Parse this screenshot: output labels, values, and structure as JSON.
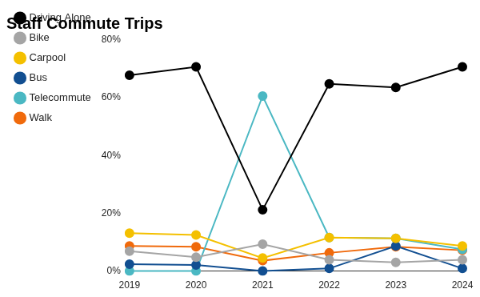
{
  "chart_data": {
    "type": "line",
    "title": "Staff Commute Trips",
    "categories": [
      "2019",
      "2020",
      "2021",
      "2022",
      "2023",
      "2024"
    ],
    "series": [
      {
        "name": "Driving Alone",
        "color": "#000000",
        "values": [
          67.8,
          70.7,
          21.2,
          64.8,
          63.6,
          70.7
        ]
      },
      {
        "name": "Bike",
        "color": "#a5a5a5",
        "values": [
          6.9,
          4.8,
          9.3,
          3.9,
          3.0,
          3.9
        ]
      },
      {
        "name": "Carpool",
        "color": "#f4c000",
        "values": [
          13.1,
          12.5,
          4.5,
          11.6,
          11.3,
          8.7
        ]
      },
      {
        "name": "Bus",
        "color": "#124f91",
        "values": [
          2.4,
          2.1,
          0,
          0.9,
          8.7,
          0.9
        ]
      },
      {
        "name": "Telecommute",
        "color": "#4bb8c3",
        "values": [
          0,
          0,
          60.6,
          11.6,
          11.3,
          7.5
        ]
      },
      {
        "name": "Walk",
        "color": "#f06a0c",
        "values": [
          8.7,
          8.4,
          3.6,
          6.3,
          8.4,
          7.2
        ]
      }
    ],
    "ylim": [
      0,
      80
    ],
    "yticks": [
      {
        "value": 0,
        "label": "0%"
      },
      {
        "value": 20,
        "label": "20%"
      },
      {
        "value": 40,
        "label": "40%"
      },
      {
        "value": 60,
        "label": "60%"
      },
      {
        "value": 80,
        "label": "80%"
      }
    ],
    "grid": false,
    "legend": "left",
    "marker": "circle"
  }
}
